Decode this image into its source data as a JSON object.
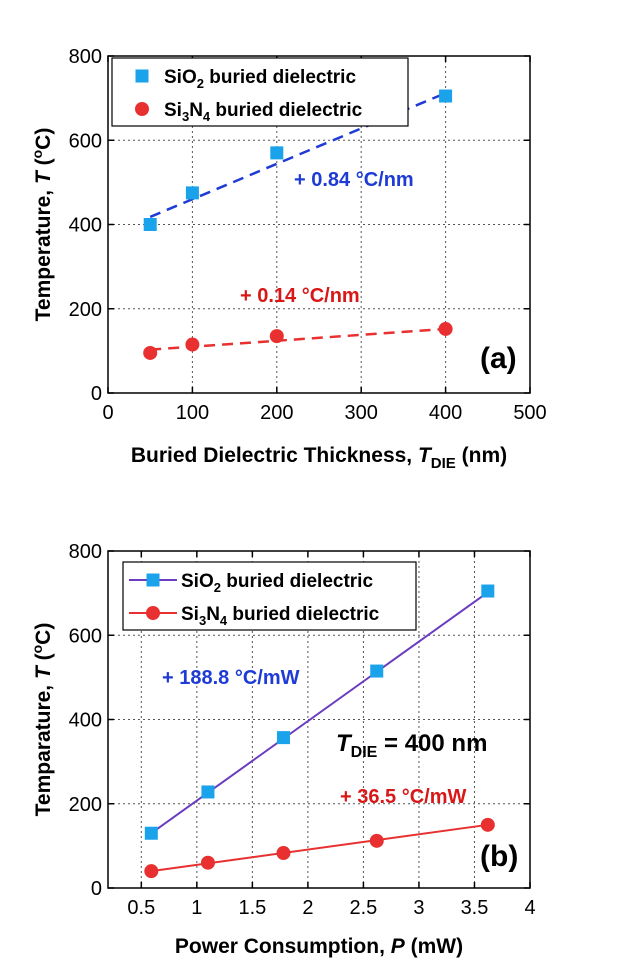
{
  "chart_data": [
    {
      "type": "scatter",
      "panel_label": "(a)",
      "xlabel": {
        "main": "Buried Dielectric Thickness, ",
        "italic": "T",
        "sub": "DIE",
        "unit": " (nm)"
      },
      "ylabel": {
        "main": "Temperature, ",
        "italic": "T",
        "unit_pre": " (",
        "sup": "o",
        "unit_post": "C)"
      },
      "xlim": [
        0,
        500
      ],
      "ylim": [
        0,
        800
      ],
      "xticks": [
        "0",
        "100",
        "200",
        "300",
        "400",
        "500"
      ],
      "yticks": [
        "0",
        "200",
        "400",
        "600",
        "800"
      ],
      "grid": "dotted",
      "legend_position": "top",
      "series": [
        {
          "legend": {
            "pre": "SiO",
            "sub1": "2",
            "mid": "",
            "sub2": "",
            "post": " buried dielectric"
          },
          "marker": "square",
          "color": "#1aa3ea",
          "x": [
            50,
            100,
            200,
            400
          ],
          "y": [
            400,
            475,
            570,
            705
          ],
          "fit": {
            "style": "dashed",
            "color": "#1f3bd6",
            "x": [
              50,
              400
            ],
            "y": [
              418,
              712
            ]
          },
          "annotation": "+ 0.84 °C/nm",
          "annotation_color": "#1f3bd6"
        },
        {
          "legend": {
            "pre": "Si",
            "sub1": "3",
            "mid": "N",
            "sub2": "4",
            "post": " buried dielectric"
          },
          "marker": "circle",
          "color": "#e83030",
          "x": [
            50,
            100,
            200,
            400
          ],
          "y": [
            95,
            115,
            135,
            152
          ],
          "fit": {
            "style": "dashed",
            "color": "#e83030",
            "x": [
              50,
              400
            ],
            "y": [
              103,
              152
            ]
          },
          "annotation": "+ 0.14 °C/nm",
          "annotation_color": "#d81818"
        }
      ]
    },
    {
      "type": "scatter",
      "panel_label": "(b)",
      "xlabel": {
        "main": "Power Consumption, ",
        "italic": "P",
        "sub": "",
        "unit": " (mW)"
      },
      "ylabel": {
        "main": "Temparature, ",
        "italic": "T",
        "unit_pre": " (",
        "sup": "o",
        "unit_post": "C)"
      },
      "xlim": [
        0.2,
        4
      ],
      "ylim": [
        0,
        800
      ],
      "xticks": [
        "0.5",
        "1",
        "1.5",
        "2",
        "2.5",
        "3",
        "3.5",
        "4"
      ],
      "yticks": [
        "0",
        "200",
        "400",
        "600",
        "800"
      ],
      "grid": "dotted",
      "legend_position": "top",
      "condition": {
        "italic": "T",
        "sub": "DIE",
        "rest": " = 400 nm"
      },
      "series": [
        {
          "legend": {
            "pre": "SiO",
            "sub1": "2",
            "mid": "",
            "sub2": "",
            "post": " buried dielectric"
          },
          "marker": "square",
          "color": "#1aa3ea",
          "line_color": "#6a3cc0",
          "x": [
            0.59,
            1.1,
            1.78,
            2.62,
            3.62
          ],
          "y": [
            130,
            228,
            357,
            515,
            705
          ],
          "fit": {
            "style": "solid",
            "color": "#6a3cc0",
            "x": [
              0.59,
              3.62
            ],
            "y": [
              130,
              702
            ]
          },
          "annotation": "+ 188.8 °C/mW",
          "annotation_color": "#1f3bd6"
        },
        {
          "legend": {
            "pre": "Si",
            "sub1": "3",
            "mid": "N",
            "sub2": "4",
            "post": " buried dielectric"
          },
          "marker": "circle",
          "color": "#e83030",
          "line_color": "#e83030",
          "x": [
            0.59,
            1.1,
            1.78,
            2.62,
            3.62
          ],
          "y": [
            40,
            60,
            83,
            112,
            150
          ],
          "fit": {
            "style": "solid",
            "color": "#e83030",
            "x": [
              0.59,
              3.62
            ],
            "y": [
              40,
              150
            ]
          },
          "annotation": "+ 36.5 °C/mW",
          "annotation_color": "#d81818"
        }
      ]
    }
  ]
}
